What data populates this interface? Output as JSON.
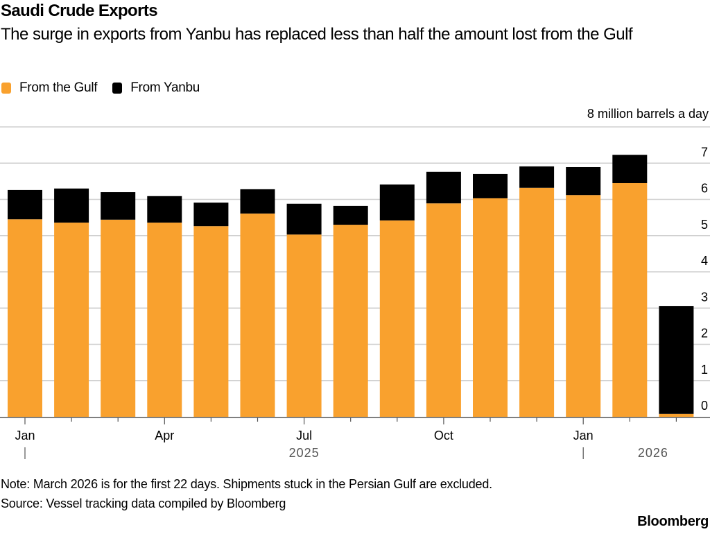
{
  "chart_data": {
    "type": "bar",
    "stacked": true,
    "title": "Saudi Crude Exports",
    "subtitle": "The surge in exports from Yanbu has replaced less than half the amount lost from the Gulf",
    "unit_label": "8 million barrels a day",
    "categories": [
      "Jan 2025",
      "Feb 2025",
      "Mar 2025",
      "Apr 2025",
      "May 2025",
      "Jun 2025",
      "Jul 2025",
      "Aug 2025",
      "Sep 2025",
      "Oct 2025",
      "Nov 2025",
      "Dec 2025",
      "Jan 2026",
      "Feb 2026",
      "Mar 2026"
    ],
    "series": [
      {
        "name": "From the Gulf",
        "color": "#F9A12E",
        "values": [
          5.45,
          5.36,
          5.44,
          5.36,
          5.26,
          5.61,
          5.03,
          5.3,
          5.42,
          5.89,
          6.03,
          6.32,
          6.12,
          6.45,
          0.08
        ]
      },
      {
        "name": "From Yanbu",
        "color": "#000000",
        "values": [
          0.81,
          0.94,
          0.76,
          0.73,
          0.65,
          0.67,
          0.85,
          0.52,
          0.99,
          0.87,
          0.67,
          0.59,
          0.77,
          0.78,
          2.98
        ]
      }
    ],
    "ylim": [
      0,
      8
    ],
    "yticks": [
      0,
      1,
      2,
      3,
      4,
      5,
      6,
      7,
      8
    ],
    "ytick_labels": [
      "0",
      "1",
      "2",
      "3",
      "4",
      "5",
      "6",
      "7"
    ],
    "y_axis_side": "right",
    "grid": true,
    "xtick_labels": [
      {
        "index": 0,
        "label": "Jan"
      },
      {
        "index": 3,
        "label": "Apr"
      },
      {
        "index": 6,
        "label": "Jul"
      },
      {
        "index": 9,
        "label": "Oct"
      },
      {
        "index": 12,
        "label": "Jan"
      }
    ],
    "year_labels": [
      {
        "label": "2025",
        "center_index": 6,
        "divider_index": 0
      },
      {
        "label": "2026",
        "center_index": 13.5,
        "divider_index": 12
      }
    ],
    "legend_position": "top-left",
    "note": "Note: March 2026 is for the first 22 days. Shipments stuck in the Persian Gulf are excluded.",
    "source": "Source: Vessel tracking data compiled by Bloomberg"
  },
  "brand": "Bloomberg"
}
